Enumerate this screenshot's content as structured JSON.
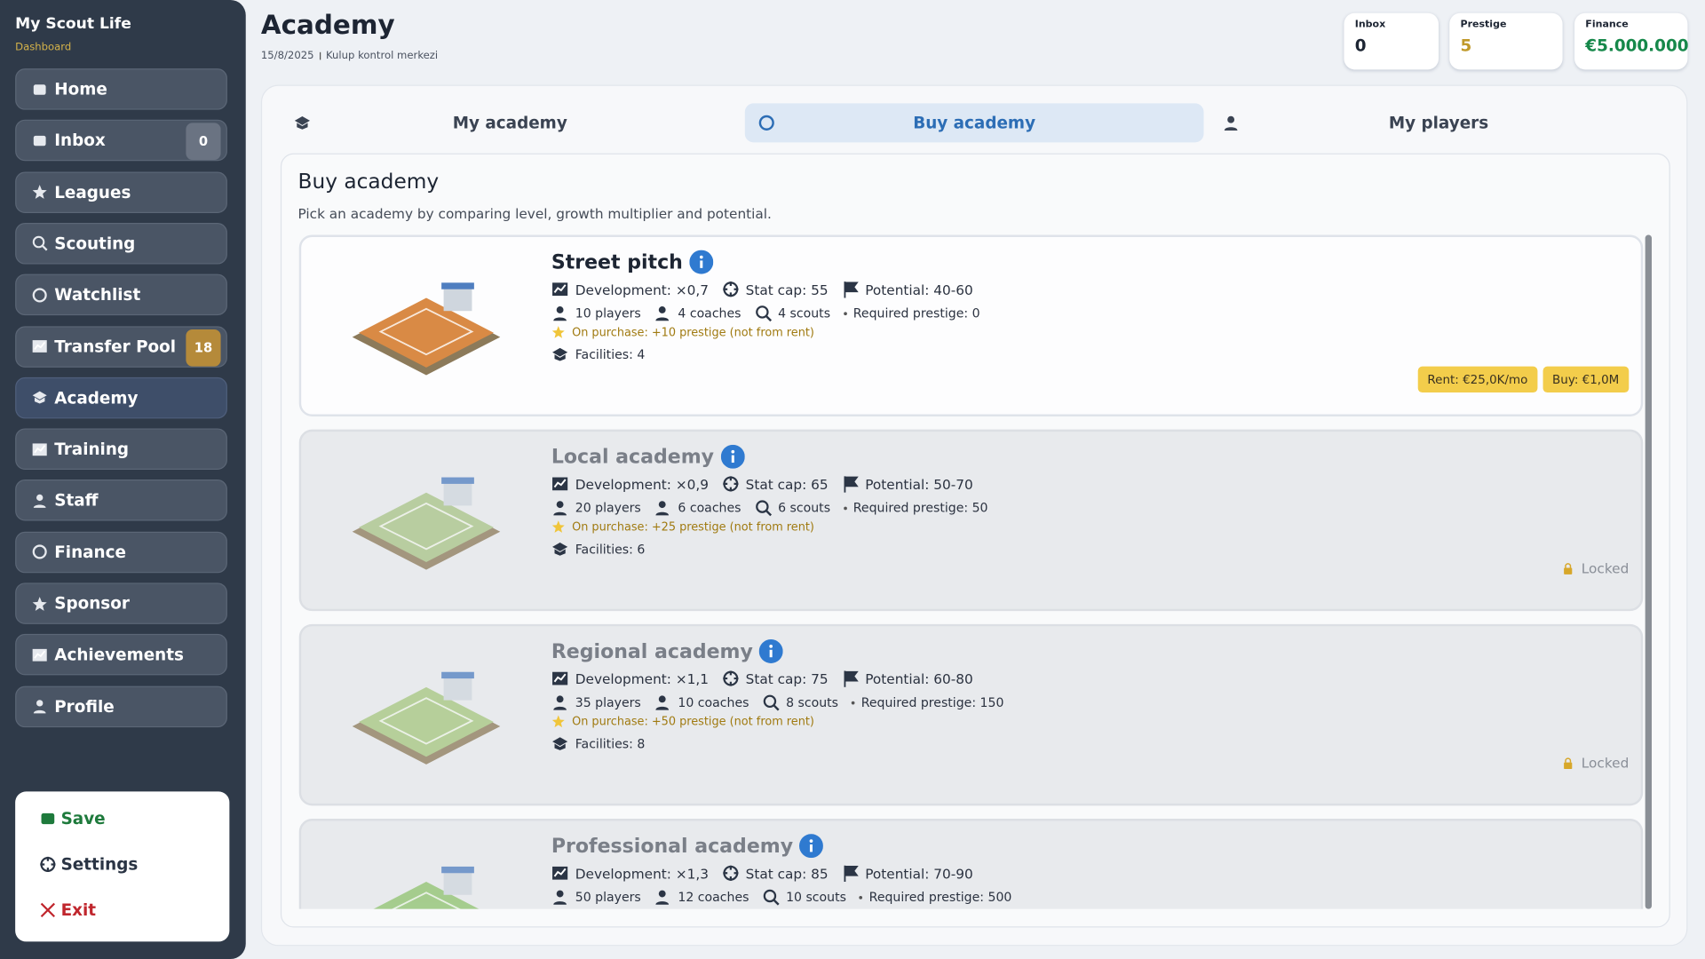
{
  "sidebar": {
    "title": "My Scout Life",
    "subtitle": "Dashboard",
    "nav": [
      {
        "label": "Home"
      },
      {
        "label": "Inbox",
        "badge": 0
      },
      {
        "label": "Leagues"
      },
      {
        "label": "Scouting"
      },
      {
        "label": "Watchlist"
      },
      {
        "label": "Transfer Pool",
        "badge": 18
      },
      {
        "label": "Academy",
        "active": true
      },
      {
        "label": "Training"
      },
      {
        "label": "Staff"
      },
      {
        "label": "Finance"
      },
      {
        "label": "Sponsor"
      },
      {
        "label": "Achievements"
      },
      {
        "label": "Profile"
      }
    ],
    "footer": [
      {
        "label": "Save",
        "color": "#1e7a3c"
      },
      {
        "label": "Settings",
        "color": "#2a3444"
      },
      {
        "label": "Exit",
        "color": "#c0262d"
      }
    ]
  },
  "header": {
    "title": "Academy",
    "date": "15/8/2025",
    "subtitle": "Kulup kontrol merkezi",
    "stats": [
      {
        "label": "Inbox",
        "value": 0,
        "color": "#1d2533"
      },
      {
        "label": "Prestige",
        "value": 5,
        "color": "#c0992a"
      },
      {
        "label": "Finance",
        "value": "€5.000.000",
        "color": "#16884a"
      }
    ]
  },
  "tabs": [
    {
      "label": "My academy"
    },
    {
      "label": "Buy academy",
      "active": true
    },
    {
      "label": "My players"
    }
  ],
  "panel": {
    "title": "Buy academy",
    "description": "Pick an academy by comparing level, growth multiplier and potential.",
    "academies": [
      {
        "name": "Street pitch",
        "development": "Development: ×0,7",
        "stat_cap": "Stat cap: 55",
        "potential": "Potential: 40-60",
        "players": "10 players",
        "coaches": "4 coaches",
        "scouts": "4 scouts",
        "required": "Required prestige: 0",
        "on_purchase": "On purchase: +10 prestige (not from rent)",
        "facilities": "Facilities: 4",
        "actions": [
          "Rent: €25,0K/mo",
          "Buy: €1,0M"
        ],
        "locked": false,
        "ground": "#d98a45"
      },
      {
        "name": "Local academy",
        "development": "Development: ×0,9",
        "stat_cap": "Stat cap: 65",
        "potential": "Potential: 50-70",
        "players": "20 players",
        "coaches": "6 coaches",
        "scouts": "6 scouts",
        "required": "Required prestige: 50",
        "on_purchase": "On purchase: +25 prestige (not from rent)",
        "facilities": "Facilities: 6",
        "status": "Locked",
        "locked": true,
        "ground": "#a9c487"
      },
      {
        "name": "Regional academy",
        "development": "Development: ×1,1",
        "stat_cap": "Stat cap: 75",
        "potential": "Potential: 60-80",
        "players": "35 players",
        "coaches": "10 coaches",
        "scouts": "8 scouts",
        "required": "Required prestige: 150",
        "on_purchase": "On purchase: +50 prestige (not from rent)",
        "facilities": "Facilities: 8",
        "status": "Locked",
        "locked": true,
        "ground": "#a6c77f"
      },
      {
        "name": "Professional academy",
        "development": "Development: ×1,3",
        "stat_cap": "Stat cap: 85",
        "potential": "Potential: 70-90",
        "players": "50 players",
        "coaches": "12 coaches",
        "scouts": "10 scouts",
        "required": "Required prestige: 500",
        "locked": true,
        "ground": "#8fc36e"
      }
    ]
  }
}
